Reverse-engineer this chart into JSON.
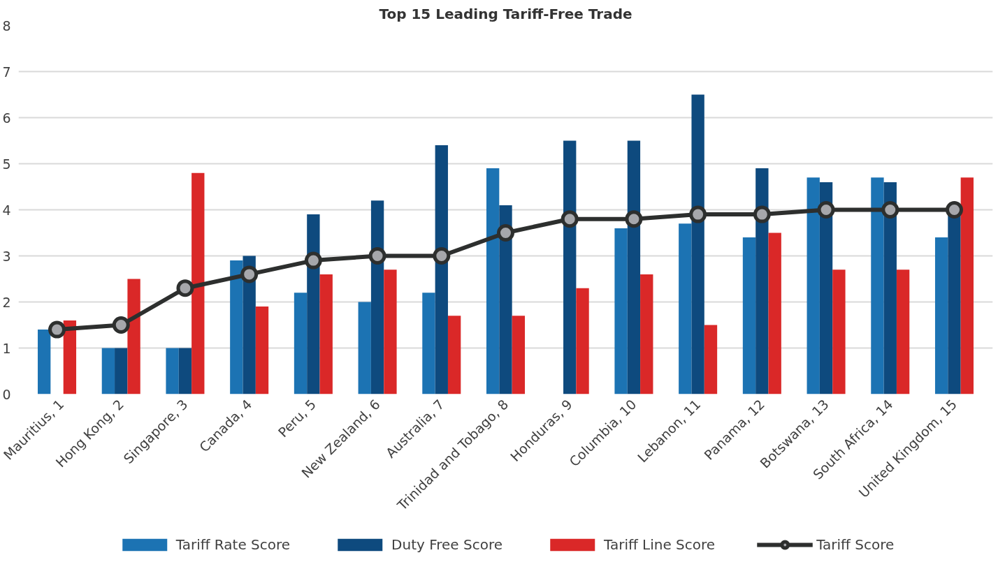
{
  "chart_data": {
    "type": "bar",
    "title": "Top 15 Leading Tariff-Free Trade",
    "categories": [
      "Mauritius, 1",
      "Hong Kong, 2",
      "Singapore, 3",
      "Canada, 4",
      "Peru, 5",
      "New Zealand, 6",
      "Australia, 7",
      "Trinidad and Tobago, 8",
      "Honduras, 9",
      "Columbia, 10",
      "Lebanon, 11",
      "Panama, 12",
      "Botswana, 13",
      "South Africa, 14",
      "United Kingdom, 15"
    ],
    "series": [
      {
        "name": "Tariff Rate Score",
        "color": "#1c73b3",
        "values": [
          1.4,
          1.0,
          1.0,
          2.9,
          2.2,
          2.0,
          2.2,
          4.9,
          null,
          3.6,
          3.7,
          3.4,
          4.7,
          4.7,
          3.4
        ]
      },
      {
        "name": "Duty Free Score",
        "color": "#0e4a7e",
        "values": [
          null,
          1.0,
          1.0,
          3.0,
          3.9,
          4.2,
          5.4,
          4.1,
          5.5,
          5.5,
          6.5,
          4.9,
          4.6,
          4.6,
          3.9
        ]
      },
      {
        "name": "Tariff Line Score",
        "color": "#da2828",
        "values": [
          1.6,
          2.5,
          4.8,
          1.9,
          2.6,
          2.7,
          1.7,
          1.7,
          2.3,
          2.6,
          1.5,
          3.5,
          2.7,
          2.7,
          4.7
        ]
      },
      {
        "name": "Tariff Score",
        "type": "line",
        "color": "#2d2f2e",
        "marker": "circle",
        "values": [
          1.4,
          1.5,
          2.3,
          2.6,
          2.9,
          3.0,
          3.0,
          3.5,
          3.8,
          3.8,
          3.9,
          3.9,
          4.0,
          4.0,
          4.0
        ]
      }
    ],
    "ylim": [
      0,
      8
    ],
    "yticks": [
      0,
      1,
      2,
      3,
      4,
      5,
      6,
      7,
      8
    ],
    "grid": "y",
    "legend": "bottom"
  }
}
